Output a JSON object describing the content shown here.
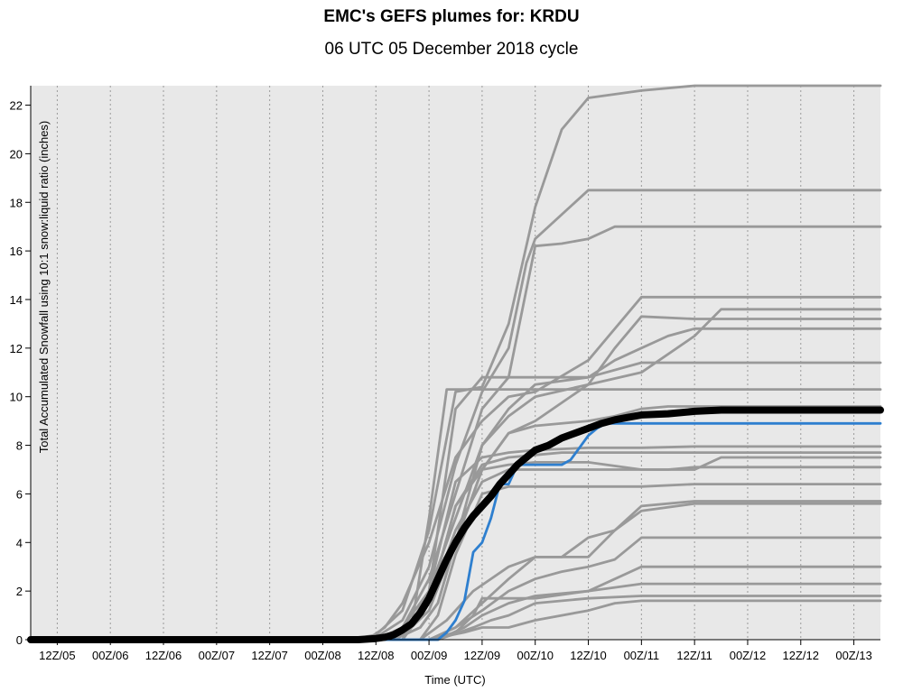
{
  "title": "EMC's GEFS plumes for: KRDU",
  "subtitle": "06 UTC 05 December 2018 cycle",
  "chart_data": {
    "type": "line",
    "title": "EMC's GEFS plumes for: KRDU",
    "subtitle": "06 UTC 05 December 2018 cycle",
    "xlabel": "Time (UTC)",
    "ylabel": "Total Accumulated Snowfall using 10:1 snow:liquid ratio (inches)",
    "x_unit": "hours after 06Z/05 Dec 2018",
    "x_tick_labels": [
      "12Z/05",
      "00Z/06",
      "12Z/06",
      "00Z/07",
      "12Z/07",
      "00Z/08",
      "12Z/08",
      "00Z/09",
      "12Z/09",
      "00Z/10",
      "12Z/10",
      "00Z/11",
      "12Z/11",
      "00Z/12",
      "12Z/12",
      "00Z/13"
    ],
    "x_tick_hours": [
      6,
      18,
      30,
      42,
      54,
      66,
      78,
      90,
      102,
      114,
      126,
      138,
      150,
      162,
      174,
      186
    ],
    "xlim": [
      0,
      192
    ],
    "ylim": [
      0,
      22.8
    ],
    "y_ticks": [
      0,
      2,
      4,
      6,
      8,
      10,
      12,
      14,
      16,
      18,
      20,
      22
    ],
    "grid": "vertical dotted",
    "colors": {
      "members": "#999999",
      "mean": "#000000",
      "control": "#2e7fcf",
      "background": "#e8e8e8"
    },
    "series": [
      {
        "role": "member",
        "x": [
          0,
          72,
          78,
          84,
          90,
          96,
          102,
          108,
          114,
          120,
          126,
          138,
          150,
          192
        ],
        "y": [
          0,
          0,
          0.2,
          1.2,
          4.5,
          10.2,
          10.4,
          13,
          17.8,
          21,
          22.3,
          22.6,
          22.8,
          22.8
        ]
      },
      {
        "role": "member",
        "x": [
          0,
          72,
          78,
          84,
          90,
          96,
          102,
          108,
          112,
          114,
          126,
          192
        ],
        "y": [
          0,
          0,
          0.1,
          0.8,
          3,
          7.2,
          10.2,
          12,
          15.5,
          16.5,
          18.5,
          18.5
        ]
      },
      {
        "role": "member",
        "x": [
          0,
          78,
          84,
          90,
          96,
          102,
          108,
          114,
          120,
          126,
          132,
          192
        ],
        "y": [
          0,
          0,
          0.5,
          2.5,
          6,
          9.5,
          10.8,
          16.2,
          16.3,
          16.5,
          17,
          17
        ]
      },
      {
        "role": "member",
        "x": [
          0,
          76,
          80,
          84,
          90,
          96,
          102,
          108,
          114,
          126,
          138,
          150,
          192
        ],
        "y": [
          0,
          0,
          0.5,
          1.5,
          4,
          7.5,
          9,
          10,
          10.2,
          11.5,
          14.1,
          14.1,
          14.1
        ]
      },
      {
        "role": "member",
        "x": [
          0,
          78,
          84,
          90,
          96,
          102,
          108,
          114,
          126,
          138,
          150,
          156,
          192
        ],
        "y": [
          0,
          0,
          0.5,
          2,
          5,
          8,
          9.2,
          10,
          10.5,
          11,
          12.5,
          13.6,
          13.6
        ]
      },
      {
        "role": "member",
        "x": [
          0,
          80,
          86,
          90,
          96,
          102,
          108,
          114,
          126,
          132,
          138,
          150,
          192
        ],
        "y": [
          0,
          0,
          0.5,
          1.2,
          4,
          7,
          8.5,
          9,
          10.5,
          12,
          13.3,
          13.2,
          13.2
        ]
      },
      {
        "role": "member",
        "x": [
          0,
          82,
          88,
          92,
          96,
          102,
          108,
          114,
          126,
          132,
          138,
          144,
          150,
          192
        ],
        "y": [
          0,
          0,
          0.5,
          1.5,
          4,
          8,
          9.5,
          10.5,
          10.8,
          11.5,
          12,
          12.5,
          12.8,
          12.8
        ]
      },
      {
        "role": "member",
        "x": [
          0,
          82,
          86,
          90,
          94,
          96,
          192
        ],
        "y": [
          0,
          0,
          0.5,
          5,
          10.3,
          10.3,
          10.3
        ]
      },
      {
        "role": "member",
        "x": [
          0,
          84,
          90,
          96,
          102,
          114,
          126,
          138,
          192
        ],
        "y": [
          0,
          0,
          2,
          9.5,
          10.8,
          10.8,
          10.8,
          11.4,
          11.4
        ]
      },
      {
        "role": "member",
        "x": [
          0,
          82,
          88,
          92,
          96,
          102,
          108,
          114,
          126,
          132,
          138,
          144,
          192
        ],
        "y": [
          0,
          0,
          0.5,
          1.5,
          4,
          7,
          8.5,
          8.8,
          9,
          9.2,
          9.5,
          9.6,
          9.6
        ]
      },
      {
        "role": "member",
        "x": [
          0,
          84,
          90,
          96,
          102,
          108,
          114,
          126,
          138,
          150,
          192
        ],
        "y": [
          0,
          0,
          2,
          6.5,
          7.5,
          7.7,
          7.8,
          7.9,
          7.9,
          7.95,
          7.95
        ]
      },
      {
        "role": "member",
        "x": [
          0,
          84,
          90,
          96,
          102,
          108,
          114,
          120,
          126,
          138,
          150,
          192
        ],
        "y": [
          0,
          0,
          1.5,
          5.5,
          7.2,
          7.5,
          7.6,
          7.7,
          7.7,
          7.7,
          7.7,
          7.7
        ]
      },
      {
        "role": "member",
        "x": [
          0,
          84,
          90,
          96,
          102,
          108,
          114,
          120,
          126,
          138,
          150,
          156,
          192
        ],
        "y": [
          0,
          0,
          1.5,
          5.5,
          7,
          7.2,
          7.3,
          7.3,
          7.3,
          7,
          7,
          7.5,
          7.5
        ]
      },
      {
        "role": "member",
        "x": [
          0,
          84,
          90,
          96,
          102,
          108,
          114,
          126,
          138,
          144,
          150,
          192
        ],
        "y": [
          0,
          0,
          1.5,
          4.5,
          6.5,
          7,
          7,
          7,
          7,
          7,
          7.1,
          7.1
        ]
      },
      {
        "role": "member",
        "x": [
          0,
          88,
          92,
          96,
          102,
          108,
          114,
          126,
          138,
          150,
          192
        ],
        "y": [
          0,
          0,
          1,
          3.5,
          6,
          6.3,
          6.3,
          6.3,
          6.3,
          6.4,
          6.4
        ]
      },
      {
        "role": "member",
        "x": [
          0,
          88,
          94,
          100,
          108,
          114,
          126,
          132,
          138,
          150,
          192
        ],
        "y": [
          0,
          0,
          0.8,
          2,
          3,
          3.4,
          3.4,
          4.5,
          5.5,
          5.7,
          5.7
        ]
      },
      {
        "role": "member",
        "x": [
          0,
          90,
          96,
          102,
          108,
          114,
          120,
          126,
          132,
          138,
          150,
          192
        ],
        "y": [
          0,
          0,
          0.5,
          1.5,
          2.5,
          3.4,
          3.4,
          4.2,
          4.5,
          5.3,
          5.6,
          5.6
        ]
      },
      {
        "role": "member",
        "x": [
          0,
          90,
          96,
          102,
          108,
          114,
          120,
          126,
          132,
          138,
          192
        ],
        "y": [
          0,
          0,
          0.5,
          1.2,
          2,
          2.5,
          2.8,
          3,
          3.3,
          4.2,
          4.2
        ]
      },
      {
        "role": "member",
        "x": [
          0,
          90,
          96,
          100,
          102,
          114,
          126,
          132,
          138,
          192
        ],
        "y": [
          0,
          0,
          0.3,
          1,
          1.7,
          1.7,
          2,
          2.5,
          3,
          3
        ]
      },
      {
        "role": "member",
        "x": [
          0,
          92,
          98,
          102,
          108,
          114,
          126,
          138,
          192
        ],
        "y": [
          0,
          0,
          0.5,
          1,
          1.5,
          1.8,
          2,
          2.3,
          2.3
        ]
      },
      {
        "role": "member",
        "x": [
          0,
          92,
          100,
          104,
          108,
          114,
          126,
          138,
          192
        ],
        "y": [
          0,
          0,
          0.5,
          0.8,
          1,
          1.5,
          1.7,
          1.8,
          1.8
        ]
      },
      {
        "role": "member",
        "x": [
          0,
          90,
          98,
          102,
          108,
          114,
          126,
          132,
          138,
          192
        ],
        "y": [
          0,
          0,
          0.3,
          0.5,
          0.5,
          0.8,
          1.2,
          1.5,
          1.6,
          1.6
        ]
      },
      {
        "role": "mean",
        "name": "",
        "x": [
          0,
          74,
          78,
          80,
          82,
          84,
          86,
          88,
          90,
          92,
          94,
          96,
          98,
          100,
          102,
          104,
          106,
          108,
          110,
          112,
          114,
          117,
          120,
          123,
          126,
          129,
          132,
          135,
          138,
          144,
          150,
          156,
          162,
          192
        ],
        "y": [
          0,
          0,
          0.05,
          0.1,
          0.2,
          0.4,
          0.65,
          1.1,
          1.7,
          2.5,
          3.3,
          4,
          4.6,
          5.1,
          5.5,
          5.9,
          6.4,
          6.8,
          7.2,
          7.5,
          7.8,
          8,
          8.3,
          8.5,
          8.7,
          8.9,
          9.05,
          9.15,
          9.25,
          9.3,
          9.4,
          9.45,
          9.45,
          9.45
        ]
      },
      {
        "role": "control",
        "name": "",
        "x": [
          0,
          92,
          94,
          96,
          98,
          100,
          102,
          104,
          106,
          108,
          110,
          112,
          114,
          116,
          120,
          122,
          124,
          126,
          128,
          130,
          132,
          138,
          192
        ],
        "y": [
          0,
          0,
          0.3,
          0.8,
          1.6,
          3.6,
          4,
          5,
          6.4,
          6.4,
          7.2,
          7.2,
          7.2,
          7.2,
          7.2,
          7.4,
          7.9,
          8.4,
          8.7,
          8.9,
          8.9,
          8.9,
          8.9
        ]
      }
    ]
  }
}
